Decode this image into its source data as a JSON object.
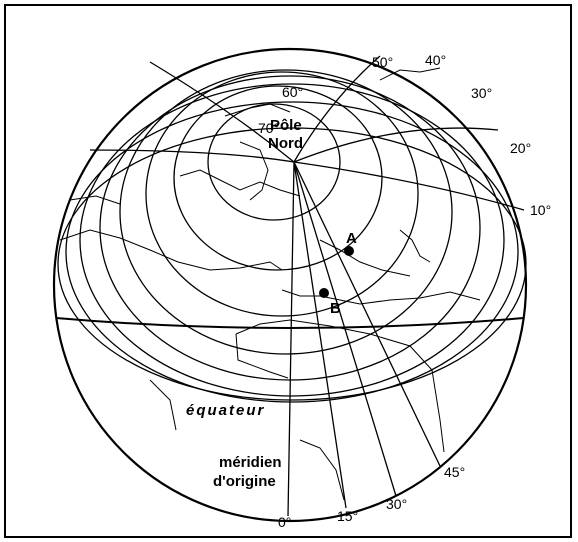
{
  "latitudes": {
    "lat_60": "60°",
    "lat_70": "70°"
  },
  "meridians": {
    "lon_50": "50°",
    "lon_40": "40°",
    "lon_30_top": "30°",
    "lon_20": "20°",
    "lon_10": "10°",
    "lon_0": "0°",
    "lon_15": "15°",
    "lon_30_bottom": "30°",
    "lon_45": "45°"
  },
  "pole": {
    "line1": "Pôle",
    "line2": "Nord"
  },
  "points": {
    "a": "A",
    "b": "B"
  },
  "equator_label": "équateur",
  "prime_meridian": {
    "line1": "méridien",
    "line2": "d'origine"
  }
}
